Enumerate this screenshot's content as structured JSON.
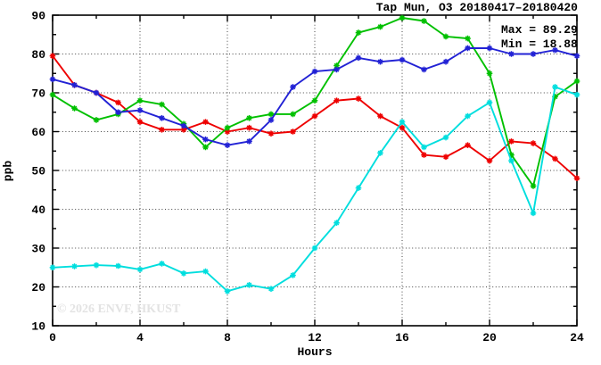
{
  "chart": {
    "title": "Tap Mun, O3 20180417–20180420",
    "stats": {
      "max_label": "Max = 89.29",
      "min_label": "Min = 18.88"
    },
    "watermark": "© 2026 ENVF, HKUST",
    "xlabel": "Hours",
    "ylabel": "ppb"
  },
  "chart_data": {
    "type": "line",
    "title": "Tap Mun, O3 20180417–20180420",
    "xlabel": "Hours",
    "ylabel": "ppb",
    "xlim": [
      0,
      24
    ],
    "ylim": [
      10,
      90
    ],
    "x_major_ticks": [
      0,
      4,
      8,
      12,
      16,
      20,
      24
    ],
    "x_minor_ticks": [
      2,
      6,
      10,
      14,
      18,
      22
    ],
    "y_major_ticks": [
      10,
      20,
      30,
      40,
      50,
      60,
      70,
      80,
      90
    ],
    "y_minor_ticks": [
      15,
      25,
      35,
      45,
      55,
      65,
      75,
      85
    ],
    "grid": "dotted at major ticks, box border with mirrored inward ticks",
    "legend_position": "none (Max/Min annotation top-right)",
    "annotations": {
      "max": 89.29,
      "min": 18.88
    },
    "marker": "asterisk",
    "x": [
      0,
      1,
      2,
      3,
      4,
      5,
      6,
      7,
      8,
      9,
      10,
      11,
      12,
      13,
      14,
      15,
      16,
      17,
      18,
      19,
      20,
      21,
      22,
      23,
      24
    ],
    "series": [
      {
        "name": "red",
        "color": "#ee0000",
        "values": [
          79.5,
          72,
          70,
          67.5,
          62.5,
          60.5,
          60.5,
          62.5,
          60,
          61,
          59.5,
          60,
          64,
          68,
          68.5,
          64,
          61,
          54,
          53.5,
          56.5,
          52.5,
          57.5,
          57,
          53,
          48
        ]
      },
      {
        "name": "green",
        "color": "#00c000",
        "values": [
          69.5,
          66,
          63,
          64.5,
          68,
          67,
          62,
          56,
          61,
          63.5,
          64.5,
          64.5,
          68,
          77,
          85.5,
          87,
          89.3,
          88.5,
          84.5,
          84,
          75,
          54,
          46,
          69,
          73
        ]
      },
      {
        "name": "blue",
        "color": "#2222d5",
        "values": [
          73.5,
          72,
          70,
          65,
          65.5,
          63.5,
          61.5,
          58,
          56.5,
          57.5,
          63,
          71.5,
          75.5,
          76,
          79,
          78,
          78.5,
          76,
          78,
          81.5,
          81.5,
          80,
          80,
          81,
          79.5
        ]
      },
      {
        "name": "cyan",
        "color": "#00dede",
        "values": [
          25,
          25.3,
          25.6,
          25.4,
          24.5,
          26,
          23.5,
          24,
          18.9,
          20.5,
          19.5,
          23,
          30,
          36.5,
          45.5,
          54.5,
          62.5,
          56,
          58.5,
          64,
          67.5,
          52.5,
          39,
          71.5,
          69.5
        ]
      }
    ]
  }
}
